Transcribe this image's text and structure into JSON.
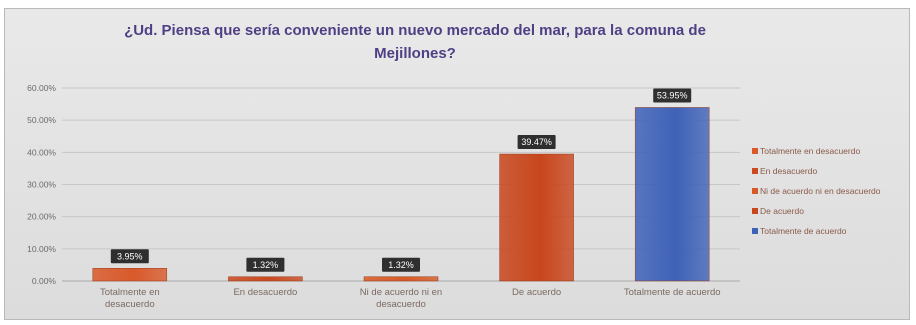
{
  "chart_data": {
    "type": "bar",
    "title": "¿Ud. Piensa que sería conveniente un nuevo mercado del mar, para la comuna de Mejillones?",
    "categories": [
      "Totalmente en desacuerdo",
      "En desacuerdo",
      "Ni de acuerdo ni en desacuerdo",
      "De acuerdo",
      "Totalmente de acuerdo"
    ],
    "category_lines": [
      [
        "Totalmente en",
        "desacuerdo"
      ],
      [
        "En desacuerdo"
      ],
      [
        "Ni de acuerdo ni en",
        "desacuerdo"
      ],
      [
        "De acuerdo"
      ],
      [
        "Totalmente de acuerdo"
      ]
    ],
    "values": [
      3.95,
      1.32,
      1.32,
      39.47,
      53.95
    ],
    "data_labels": [
      "3.95%",
      "1.32%",
      "1.32%",
      "39.47%",
      "53.95%"
    ],
    "colors": [
      "#d9592a",
      "#c94a20",
      "#d65a26",
      "#c8461c",
      "#3f62b8"
    ],
    "ylim": [
      0,
      60
    ],
    "yticks": [
      0,
      10,
      20,
      30,
      40,
      50,
      60
    ],
    "ytick_labels": [
      "0.00%",
      "10.00%",
      "20.00%",
      "30.00%",
      "40.00%",
      "50.00%",
      "60.00%"
    ],
    "xlabel": "",
    "ylabel": "",
    "grid": true,
    "legend": {
      "position": "right",
      "entries": [
        {
          "label": "Totalmente en desacuerdo",
          "color": "#d9592a"
        },
        {
          "label": "En desacuerdo",
          "color": "#c94a20"
        },
        {
          "label": "Ni de acuerdo ni en desacuerdo",
          "color": "#d65a26"
        },
        {
          "label": "De acuerdo",
          "color": "#c8461c"
        },
        {
          "label": "Totalmente de acuerdo",
          "color": "#3f62b8"
        }
      ]
    }
  }
}
